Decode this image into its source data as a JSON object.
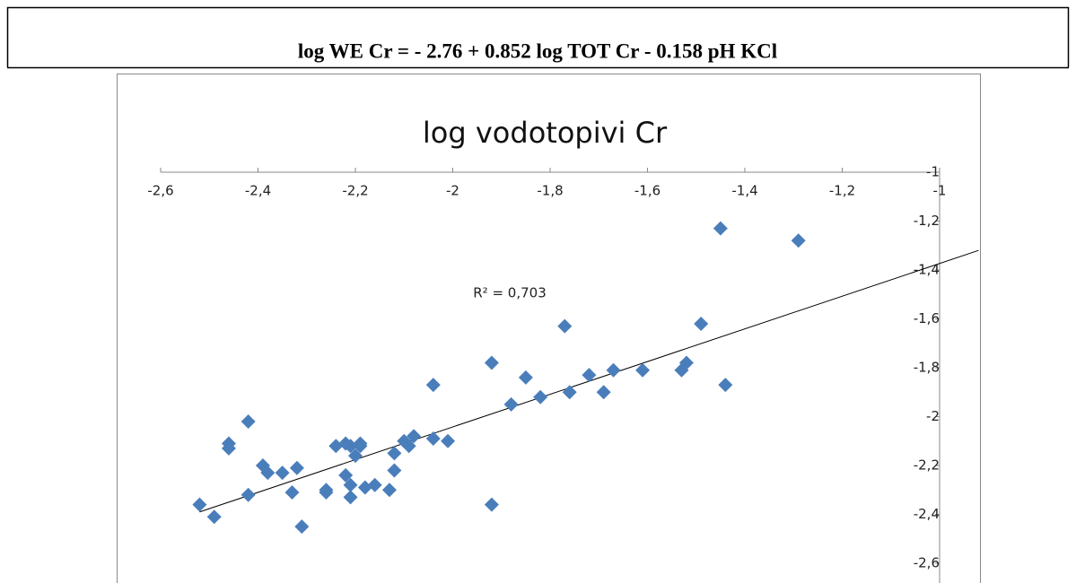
{
  "equation": "log WE Cr = - 2.76 + 0.852 log TOT Cr - 0.158 pH KCl",
  "chart_data": {
    "type": "scatter",
    "title": "log vodotopivi Cr",
    "annotation": "R² = 0,703",
    "xlim": [
      -2.6,
      -1
    ],
    "ylim": [
      -2.6,
      -1
    ],
    "xticks": [
      {
        "value": -2.6,
        "label": "-2,6"
      },
      {
        "value": -2.4,
        "label": "-2,4"
      },
      {
        "value": -2.2,
        "label": "-2,2"
      },
      -2,
      {
        "value": -1.8,
        "label": "-1,8"
      },
      {
        "value": -1.6,
        "label": "-1,6"
      },
      {
        "value": -1.4,
        "label": "-1,4"
      },
      {
        "value": -1.2,
        "label": "-1,2"
      },
      -1
    ],
    "yticks": [
      -1,
      {
        "value": -1.2,
        "label": "-1,2"
      },
      {
        "value": -1.4,
        "label": "-1,4"
      },
      {
        "value": -1.6,
        "label": "-1,6"
      },
      {
        "value": -1.8,
        "label": "-1,8"
      },
      -2,
      {
        "value": -2.2,
        "label": "-2,2"
      },
      {
        "value": -2.4,
        "label": "-2,4"
      },
      {
        "value": -2.6,
        "label": "-2,6"
      }
    ],
    "color": "#4a7ebb",
    "x": [
      -2.52,
      -2.49,
      -2.46,
      -2.46,
      -2.42,
      -2.42,
      -2.39,
      -2.38,
      -2.35,
      -2.33,
      -2.32,
      -2.31,
      -2.26,
      -2.26,
      -2.24,
      -2.22,
      -2.22,
      -2.21,
      -2.21,
      -2.21,
      -2.2,
      -2.19,
      -2.19,
      -2.18,
      -2.16,
      -2.13,
      -2.12,
      -2.12,
      -2.1,
      -2.09,
      -2.08,
      -2.04,
      -2.04,
      -2.01,
      -1.92,
      -1.92,
      -1.88,
      -1.85,
      -1.82,
      -1.77,
      -1.76,
      -1.72,
      -1.69,
      -1.67,
      -1.61,
      -1.53,
      -1.52,
      -1.49,
      -1.45,
      -1.44,
      -1.29
    ],
    "values": [
      -2.36,
      -2.41,
      -2.11,
      -2.13,
      -2.02,
      -2.32,
      -2.2,
      -2.23,
      -2.23,
      -2.31,
      -2.21,
      -2.45,
      -2.3,
      -2.31,
      -2.12,
      -2.24,
      -2.11,
      -2.12,
      -2.28,
      -2.33,
      -2.16,
      -2.12,
      -2.11,
      -2.29,
      -2.28,
      -2.3,
      -2.15,
      -2.22,
      -2.1,
      -2.12,
      -2.08,
      -2.09,
      -1.87,
      -2.1,
      -1.78,
      -2.36,
      -1.95,
      -1.84,
      -1.92,
      -1.63,
      -1.9,
      -1.83,
      -1.9,
      -1.81,
      -1.81,
      -1.81,
      -1.78,
      -1.62,
      -1.23,
      -1.87,
      -1.28
    ],
    "trendline": {
      "x": [
        -2.52,
        -0.92
      ],
      "values": [
        -2.39,
        -1.32
      ]
    }
  }
}
